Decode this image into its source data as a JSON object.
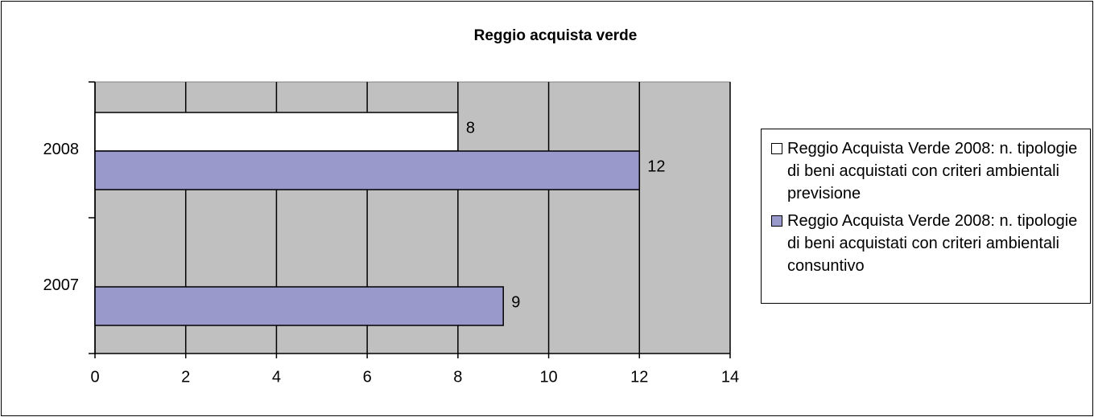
{
  "chart_data": {
    "type": "bar",
    "orientation": "horizontal",
    "title": "Reggio acquista verde",
    "categories": [
      "2008",
      "2007"
    ],
    "series": [
      {
        "name": "Reggio Acquista Verde 2008: n. tipologie di beni acquistati con criteri ambientali previsione",
        "color": "#ffffff",
        "values": [
          8,
          null
        ]
      },
      {
        "name": "Reggio Acquista Verde 2008: n. tipologie di beni acquistati con criteri ambientali consuntivo",
        "color": "#9999cc",
        "values": [
          12,
          9
        ]
      }
    ],
    "xlim": [
      0,
      14
    ],
    "xticks": [
      0,
      2,
      4,
      6,
      8,
      10,
      12,
      14
    ],
    "grid": true,
    "legend": "right",
    "plot_background": "#c0c0c0"
  }
}
